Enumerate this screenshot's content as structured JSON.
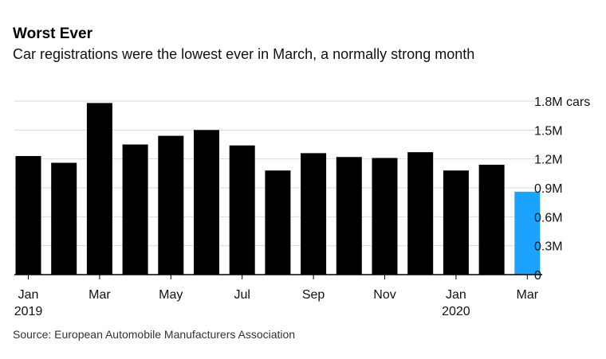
{
  "header": {
    "title": "Worst Ever",
    "subtitle": "Car registrations were the lowest ever in March, a normally strong month"
  },
  "footer": {
    "source": "Source: European Automobile Manufacturers Association"
  },
  "colors": {
    "bar": "#000000",
    "highlight": "#1aa3ff",
    "grid": "#d9d9d9",
    "axis": "#000000"
  },
  "chart_data": {
    "type": "bar",
    "title": "Worst Ever",
    "subtitle": "Car registrations were the lowest ever in March, a normally strong month",
    "xlabel": "",
    "ylabel": "",
    "ylim": [
      0,
      1.8
    ],
    "unit": "million cars",
    "categories": [
      "Jan 2019",
      "Feb 2019",
      "Mar 2019",
      "Apr 2019",
      "May 2019",
      "Jun 2019",
      "Jul 2019",
      "Aug 2019",
      "Sep 2019",
      "Oct 2019",
      "Nov 2019",
      "Dec 2019",
      "Jan 2020",
      "Feb 2020",
      "Mar 2020"
    ],
    "values": [
      1.23,
      1.16,
      1.78,
      1.35,
      1.44,
      1.5,
      1.34,
      1.08,
      1.26,
      1.22,
      1.21,
      1.27,
      1.08,
      1.14,
      0.86
    ],
    "highlight_index": 14,
    "y_ticks": [
      {
        "value": 0,
        "label": "0"
      },
      {
        "value": 0.3,
        "label": "0.3M"
      },
      {
        "value": 0.6,
        "label": "0.6M"
      },
      {
        "value": 0.9,
        "label": "0.9M"
      },
      {
        "value": 1.2,
        "label": "1.2M"
      },
      {
        "value": 1.5,
        "label": "1.5M"
      },
      {
        "value": 1.8,
        "label": "1.8M cars"
      }
    ],
    "x_ticks": [
      {
        "index": 0,
        "label": "Jan",
        "sublabel": "2019"
      },
      {
        "index": 2,
        "label": "Mar",
        "sublabel": ""
      },
      {
        "index": 4,
        "label": "May",
        "sublabel": ""
      },
      {
        "index": 6,
        "label": "Jul",
        "sublabel": ""
      },
      {
        "index": 8,
        "label": "Sep",
        "sublabel": ""
      },
      {
        "index": 10,
        "label": "Nov",
        "sublabel": ""
      },
      {
        "index": 12,
        "label": "Jan",
        "sublabel": "2020"
      },
      {
        "index": 14,
        "label": "Mar",
        "sublabel": ""
      }
    ],
    "grid": true,
    "legend": "none"
  }
}
